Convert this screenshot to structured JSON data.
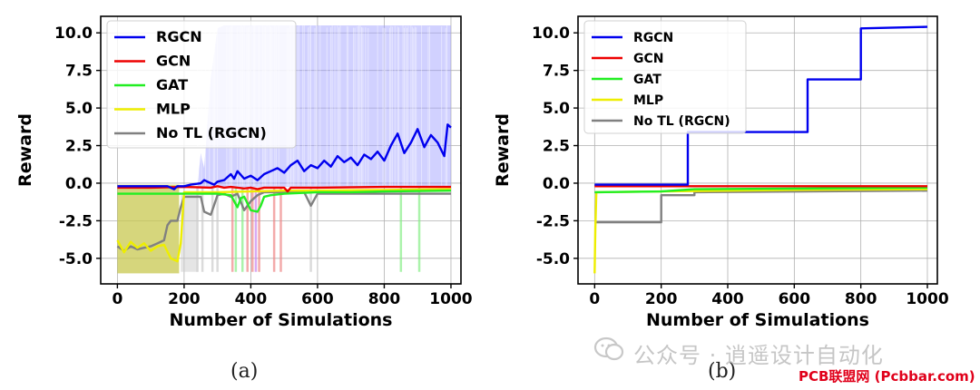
{
  "chart_data": [
    {
      "type": "line",
      "panel_label": "(a)",
      "xlabel": "Number of Simulations",
      "ylabel": "Reward",
      "xlim": [
        -50,
        1030
      ],
      "ylim": [
        -6.7,
        11.1
      ],
      "xticks": [
        0,
        200,
        400,
        600,
        800,
        1000
      ],
      "xtick_labels": [
        "0",
        "200",
        "400",
        "600",
        "800",
        "1000"
      ],
      "yticks": [
        -5.0,
        -2.5,
        0.0,
        2.5,
        5.0,
        7.5,
        10.0
      ],
      "ytick_labels": [
        "-5.0",
        "-2.5",
        "0.0",
        "2.5",
        "5.0",
        "7.5",
        "10.0"
      ],
      "grid": true,
      "legend_position": "top-left",
      "series": [
        {
          "name": "RGCN",
          "color": "#0000ee",
          "x": [
            0,
            100,
            150,
            170,
            180,
            200,
            220,
            250,
            260,
            270,
            280,
            290,
            300,
            320,
            340,
            350,
            360,
            380,
            400,
            420,
            440,
            460,
            480,
            500,
            520,
            540,
            560,
            580,
            600,
            620,
            640,
            660,
            680,
            700,
            720,
            740,
            760,
            780,
            800,
            820,
            840,
            860,
            880,
            900,
            920,
            940,
            960,
            980,
            990,
            1000
          ],
          "y": [
            -0.2,
            -0.2,
            -0.2,
            -0.4,
            -0.2,
            -0.2,
            -0.1,
            0.0,
            0.2,
            0.1,
            0.0,
            -0.1,
            0.1,
            0.2,
            0.6,
            0.3,
            0.8,
            0.3,
            0.5,
            0.2,
            0.6,
            0.8,
            1.0,
            0.7,
            1.2,
            1.5,
            0.8,
            1.2,
            1.0,
            1.5,
            1.1,
            1.8,
            1.4,
            1.7,
            1.2,
            1.9,
            1.6,
            2.1,
            1.5,
            2.5,
            3.3,
            2.0,
            2.7,
            3.6,
            2.4,
            3.2,
            2.7,
            1.8,
            3.9,
            3.7
          ]
        },
        {
          "name": "GCN",
          "color": "#ee0000",
          "x": [
            0,
            100,
            200,
            280,
            300,
            320,
            340,
            360,
            380,
            400,
            420,
            440,
            500,
            510,
            520,
            600,
            800,
            1000
          ],
          "y": [
            -0.3,
            -0.3,
            -0.25,
            -0.3,
            -0.2,
            -0.3,
            -0.25,
            -0.3,
            -0.35,
            -0.3,
            -0.4,
            -0.3,
            -0.3,
            -0.55,
            -0.3,
            -0.3,
            -0.25,
            -0.25
          ]
        },
        {
          "name": "GAT",
          "color": "#22ee22",
          "x": [
            0,
            100,
            200,
            300,
            340,
            360,
            370,
            380,
            400,
            420,
            430,
            440,
            460,
            500,
            600,
            700,
            800,
            1000
          ],
          "y": [
            -0.7,
            -0.7,
            -0.7,
            -0.7,
            -0.8,
            -1.6,
            -1.0,
            -0.9,
            -1.8,
            -1.9,
            -1.5,
            -0.9,
            -0.8,
            -0.7,
            -0.6,
            -0.6,
            -0.55,
            -0.5
          ]
        },
        {
          "name": "MLP",
          "color": "#eeee00",
          "x": [
            0,
            20,
            40,
            60,
            80,
            100,
            120,
            140,
            160,
            180,
            190,
            200,
            250,
            300,
            400,
            500,
            600,
            800,
            1000
          ],
          "y": [
            -3.8,
            -4.6,
            -3.9,
            -4.3,
            -4.0,
            -4.5,
            -4.2,
            -4.1,
            -5.0,
            -5.2,
            -4.0,
            -0.6,
            -0.6,
            -0.6,
            -0.55,
            -0.5,
            -0.5,
            -0.45,
            -0.4
          ]
        },
        {
          "name": "No TL (RGCN)",
          "color": "#808080",
          "x": [
            0,
            20,
            40,
            60,
            80,
            100,
            120,
            140,
            150,
            160,
            180,
            190,
            200,
            230,
            250,
            260,
            280,
            300,
            320,
            340,
            360,
            380,
            400,
            420,
            440,
            500,
            560,
            580,
            600,
            800,
            1000
          ],
          "y": [
            -4.2,
            -4.5,
            -4.2,
            -4.4,
            -4.3,
            -4.2,
            -4.0,
            -3.8,
            -2.8,
            -2.5,
            -2.5,
            -1.6,
            -0.9,
            -0.9,
            -0.9,
            -1.9,
            -2.1,
            -0.8,
            -0.7,
            -0.9,
            -0.7,
            -1.8,
            -1.2,
            -0.8,
            -0.6,
            -0.6,
            -0.6,
            -1.5,
            -0.7,
            -0.7,
            -0.7
          ]
        }
      ]
    },
    {
      "type": "line",
      "panel_label": "(b)",
      "xlabel": "Number of Simulations",
      "ylabel": "Reward",
      "xlim": [
        -50,
        1030
      ],
      "ylim": [
        -6.7,
        11.1
      ],
      "xticks": [
        0,
        200,
        400,
        600,
        800,
        1000
      ],
      "xtick_labels": [
        "0",
        "200",
        "400",
        "600",
        "800",
        "1000"
      ],
      "yticks": [
        -5.0,
        -2.5,
        0.0,
        2.5,
        5.0,
        7.5,
        10.0
      ],
      "ytick_labels": [
        "-5.0",
        "-2.5",
        "0.0",
        "2.5",
        "5.0",
        "7.5",
        "10.0"
      ],
      "grid": true,
      "legend_position": "top-left",
      "series": [
        {
          "name": "RGCN",
          "color": "#0000ee",
          "step": true,
          "x": [
            0,
            280,
            280,
            640,
            640,
            800,
            800,
            1000
          ],
          "y": [
            -0.1,
            -0.1,
            3.4,
            3.4,
            6.9,
            6.9,
            10.3,
            10.4
          ]
        },
        {
          "name": "GCN",
          "color": "#ee0000",
          "x": [
            0,
            1000
          ],
          "y": [
            -0.2,
            -0.2
          ]
        },
        {
          "name": "GAT",
          "color": "#22ee22",
          "x": [
            0,
            5,
            200,
            300,
            1000
          ],
          "y": [
            -0.6,
            -0.6,
            -0.55,
            -0.4,
            -0.3
          ]
        },
        {
          "name": "MLP",
          "color": "#eeee00",
          "x": [
            0,
            2,
            5,
            200,
            600,
            1000
          ],
          "y": [
            -6.0,
            -3.0,
            -0.6,
            -0.55,
            -0.45,
            -0.4
          ]
        },
        {
          "name": "No TL (RGCN)",
          "color": "#808080",
          "step": true,
          "x": [
            0,
            200,
            200,
            300,
            300,
            1000
          ],
          "y": [
            -2.6,
            -2.6,
            -0.8,
            -0.8,
            -0.6,
            -0.5
          ]
        }
      ]
    }
  ],
  "captions": [
    "(a)",
    "(b)"
  ],
  "watermark": {
    "text": "公众号 · 逍遥设计自动化",
    "stamp": "PCB联盟网 (Pcbbar.com)"
  }
}
